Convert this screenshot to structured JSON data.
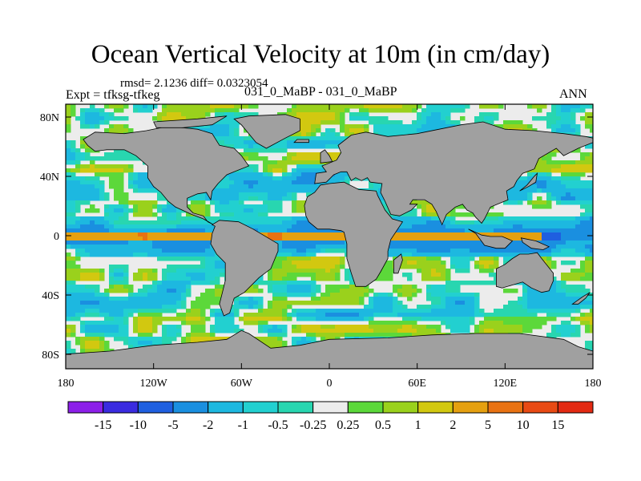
{
  "chart_data": {
    "type": "heatmap",
    "title": "Ocean Vertical Velocity at 10m (in cm/day)",
    "stats_text": "rmsd= 2.1236 diff= 0.0323054",
    "expt_text": "Expt = tfksg-tfkeg",
    "case_text": "031_0_MaBP - 031_0_MaBP",
    "season_text": "ANN",
    "x_ticks": [
      "180",
      "120W",
      "60W",
      "0",
      "60E",
      "120E",
      "180"
    ],
    "y_ticks": [
      "80N",
      "40N",
      "0",
      "40S",
      "80S"
    ],
    "xlim": [
      -180,
      180
    ],
    "ylim": [
      -90,
      90
    ],
    "land_color": "#a0a0a0",
    "colorbar": {
      "labels": [
        "-15",
        "-10",
        "-5",
        "-2",
        "-1",
        "-0.5",
        "-0.25",
        "0.25",
        "0.5",
        "1",
        "2",
        "5",
        "10",
        "15"
      ],
      "colors": [
        "#8c1fe8",
        "#3a2be0",
        "#1f5fe0",
        "#1a8fe0",
        "#1db8e0",
        "#22d0d0",
        "#28d6b0",
        "#ececec",
        "#5cd83a",
        "#9ad11c",
        "#d2c810",
        "#e5a010",
        "#e87212",
        "#e84a14",
        "#e32a12"
      ]
    }
  }
}
